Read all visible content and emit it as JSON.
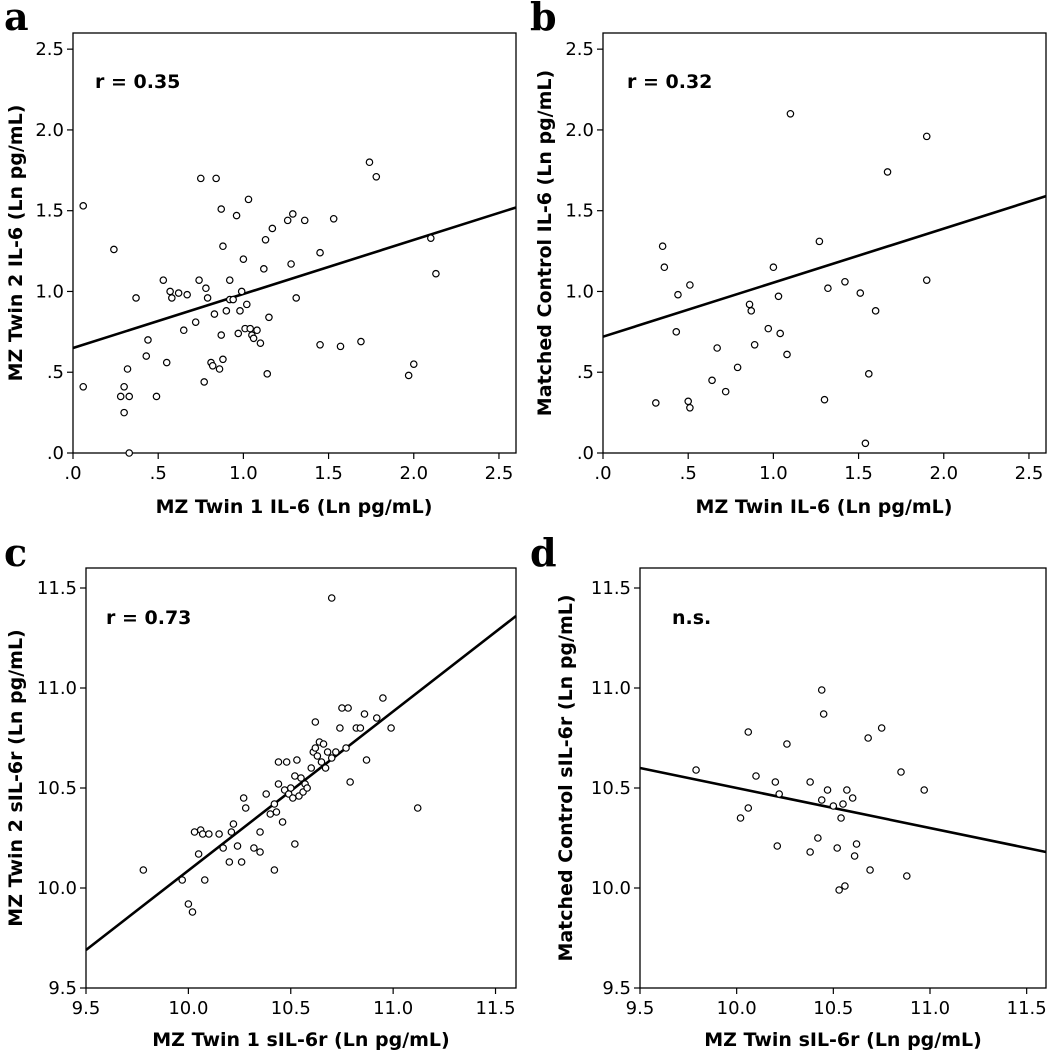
{
  "chart_data": [
    {
      "panel": "a",
      "type": "scatter",
      "annotation": "r = 0.35",
      "xlabel": "MZ Twin 1 IL-6 (Ln pg/mL)",
      "ylabel": "MZ Twin 2 IL-6 (Ln pg/mL)",
      "xlim": [
        0,
        2.6
      ],
      "ylim": [
        0,
        2.6
      ],
      "xticks": [
        0,
        0.5,
        1,
        1.5,
        2,
        2.5
      ],
      "yticks": [
        0,
        0.5,
        1,
        1.5,
        2,
        2.5
      ],
      "xtick_labels": [
        ".0",
        ".5",
        "1.0",
        "1.5",
        "2.0",
        "2.5"
      ],
      "ytick_labels": [
        ".0",
        ".5",
        "1.0",
        "1.5",
        "2.0",
        "2.5"
      ],
      "fit_line": [
        [
          0,
          0.65
        ],
        [
          2.6,
          1.52
        ]
      ],
      "points": [
        [
          0.06,
          1.53
        ],
        [
          0.06,
          0.41
        ],
        [
          0.24,
          1.26
        ],
        [
          0.28,
          0.35
        ],
        [
          0.3,
          0.41
        ],
        [
          0.3,
          0.25
        ],
        [
          0.32,
          0.52
        ],
        [
          0.33,
          0.35
        ],
        [
          0.33,
          0.0
        ],
        [
          0.37,
          0.96
        ],
        [
          0.43,
          0.6
        ],
        [
          0.44,
          0.7
        ],
        [
          0.49,
          0.35
        ],
        [
          0.53,
          1.07
        ],
        [
          0.55,
          0.56
        ],
        [
          0.57,
          1.0
        ],
        [
          0.58,
          0.96
        ],
        [
          0.62,
          0.99
        ],
        [
          0.65,
          0.76
        ],
        [
          0.67,
          0.98
        ],
        [
          0.72,
          0.81
        ],
        [
          0.74,
          1.07
        ],
        [
          0.75,
          1.7
        ],
        [
          0.77,
          0.44
        ],
        [
          0.78,
          1.02
        ],
        [
          0.79,
          0.96
        ],
        [
          0.81,
          0.56
        ],
        [
          0.82,
          0.54
        ],
        [
          0.83,
          0.86
        ],
        [
          0.84,
          1.7
        ],
        [
          0.86,
          0.52
        ],
        [
          0.87,
          1.51
        ],
        [
          0.87,
          0.73
        ],
        [
          0.88,
          0.58
        ],
        [
          0.88,
          1.28
        ],
        [
          0.9,
          0.88
        ],
        [
          0.92,
          1.07
        ],
        [
          0.92,
          0.95
        ],
        [
          0.94,
          0.95
        ],
        [
          0.96,
          1.47
        ],
        [
          0.97,
          0.74
        ],
        [
          0.98,
          0.88
        ],
        [
          0.99,
          1.0
        ],
        [
          1.0,
          1.2
        ],
        [
          1.01,
          0.77
        ],
        [
          1.02,
          0.92
        ],
        [
          1.03,
          1.57
        ],
        [
          1.04,
          0.77
        ],
        [
          1.05,
          0.73
        ],
        [
          1.06,
          0.71
        ],
        [
          1.08,
          0.76
        ],
        [
          1.1,
          0.68
        ],
        [
          1.12,
          1.14
        ],
        [
          1.13,
          1.32
        ],
        [
          1.14,
          0.49
        ],
        [
          1.15,
          0.84
        ],
        [
          1.17,
          1.39
        ],
        [
          1.26,
          1.44
        ],
        [
          1.28,
          1.17
        ],
        [
          1.29,
          1.48
        ],
        [
          1.31,
          0.96
        ],
        [
          1.36,
          1.44
        ],
        [
          1.45,
          1.24
        ],
        [
          1.45,
          0.67
        ],
        [
          1.53,
          1.45
        ],
        [
          1.57,
          0.66
        ],
        [
          1.69,
          0.69
        ],
        [
          1.74,
          1.8
        ],
        [
          1.78,
          1.71
        ],
        [
          1.97,
          0.48
        ],
        [
          2.0,
          0.55
        ],
        [
          2.1,
          1.33
        ],
        [
          2.13,
          1.11
        ]
      ]
    },
    {
      "panel": "b",
      "type": "scatter",
      "annotation": "r = 0.32",
      "xlabel": "MZ Twin IL-6 (Ln pg/mL)",
      "ylabel": "Matched Control IL-6 (Ln pg/mL)",
      "xlim": [
        0,
        2.6
      ],
      "ylim": [
        0,
        2.6
      ],
      "xticks": [
        0,
        0.5,
        1,
        1.5,
        2,
        2.5
      ],
      "yticks": [
        0,
        0.5,
        1,
        1.5,
        2,
        2.5
      ],
      "xtick_labels": [
        ".0",
        ".5",
        "1.0",
        "1.5",
        "2.0",
        "2.5"
      ],
      "ytick_labels": [
        ".0",
        ".5",
        "1.0",
        "1.5",
        "2.0",
        "2.5"
      ],
      "fit_line": [
        [
          0,
          0.72
        ],
        [
          2.6,
          1.59
        ]
      ],
      "points": [
        [
          0.31,
          0.31
        ],
        [
          0.35,
          1.28
        ],
        [
          0.36,
          1.15
        ],
        [
          0.43,
          0.75
        ],
        [
          0.44,
          0.98
        ],
        [
          0.5,
          0.32
        ],
        [
          0.51,
          0.28
        ],
        [
          0.51,
          1.04
        ],
        [
          0.64,
          0.45
        ],
        [
          0.67,
          0.65
        ],
        [
          0.72,
          0.38
        ],
        [
          0.79,
          0.53
        ],
        [
          0.86,
          0.92
        ],
        [
          0.87,
          0.88
        ],
        [
          0.89,
          0.67
        ],
        [
          0.97,
          0.77
        ],
        [
          1.0,
          1.15
        ],
        [
          1.03,
          0.97
        ],
        [
          1.04,
          0.74
        ],
        [
          1.08,
          0.61
        ],
        [
          1.1,
          2.1
        ],
        [
          1.27,
          1.31
        ],
        [
          1.3,
          0.33
        ],
        [
          1.32,
          1.02
        ],
        [
          1.42,
          1.06
        ],
        [
          1.51,
          0.99
        ],
        [
          1.54,
          0.06
        ],
        [
          1.56,
          0.49
        ],
        [
          1.6,
          0.88
        ],
        [
          1.67,
          1.74
        ],
        [
          1.9,
          1.96
        ],
        [
          1.9,
          1.07
        ]
      ]
    },
    {
      "panel": "c",
      "type": "scatter",
      "annotation": "r = 0.73",
      "xlabel": "MZ Twin 1 sIL-6r (Ln pg/mL)",
      "ylabel": "MZ Twin 2 sIL-6r (Ln pg/mL)",
      "xlim": [
        9.5,
        11.6
      ],
      "ylim": [
        9.5,
        11.6
      ],
      "xticks": [
        9.5,
        10,
        10.5,
        11,
        11.5
      ],
      "yticks": [
        9.5,
        10,
        10.5,
        11,
        11.5
      ],
      "xtick_labels": [
        "9.5",
        "10.0",
        "10.5",
        "11.0",
        "11.5"
      ],
      "ytick_labels": [
        "9.5",
        "10.0",
        "10.5",
        "11.0",
        "11.5"
      ],
      "fit_line": [
        [
          9.5,
          9.69
        ],
        [
          11.6,
          11.36
        ]
      ],
      "points": [
        [
          9.78,
          10.09
        ],
        [
          9.97,
          10.04
        ],
        [
          10.0,
          9.92
        ],
        [
          10.02,
          9.88
        ],
        [
          10.03,
          10.28
        ],
        [
          10.05,
          10.17
        ],
        [
          10.06,
          10.29
        ],
        [
          10.07,
          10.27
        ],
        [
          10.08,
          10.04
        ],
        [
          10.1,
          10.27
        ],
        [
          10.15,
          10.27
        ],
        [
          10.17,
          10.2
        ],
        [
          10.2,
          10.13
        ],
        [
          10.21,
          10.28
        ],
        [
          10.22,
          10.32
        ],
        [
          10.24,
          10.21
        ],
        [
          10.26,
          10.13
        ],
        [
          10.27,
          10.45
        ],
        [
          10.28,
          10.4
        ],
        [
          10.32,
          10.2
        ],
        [
          10.35,
          10.18
        ],
        [
          10.35,
          10.28
        ],
        [
          10.38,
          10.47
        ],
        [
          10.4,
          10.37
        ],
        [
          10.42,
          10.42
        ],
        [
          10.42,
          10.09
        ],
        [
          10.43,
          10.38
        ],
        [
          10.44,
          10.52
        ],
        [
          10.44,
          10.63
        ],
        [
          10.46,
          10.33
        ],
        [
          10.47,
          10.49
        ],
        [
          10.48,
          10.63
        ],
        [
          10.49,
          10.47
        ],
        [
          10.5,
          10.5
        ],
        [
          10.51,
          10.45
        ],
        [
          10.52,
          10.22
        ],
        [
          10.52,
          10.56
        ],
        [
          10.53,
          10.64
        ],
        [
          10.54,
          10.46
        ],
        [
          10.55,
          10.55
        ],
        [
          10.56,
          10.48
        ],
        [
          10.57,
          10.52
        ],
        [
          10.58,
          10.5
        ],
        [
          10.6,
          10.6
        ],
        [
          10.61,
          10.68
        ],
        [
          10.62,
          10.7
        ],
        [
          10.62,
          10.83
        ],
        [
          10.63,
          10.66
        ],
        [
          10.64,
          10.73
        ],
        [
          10.65,
          10.63
        ],
        [
          10.66,
          10.72
        ],
        [
          10.67,
          10.6
        ],
        [
          10.68,
          10.68
        ],
        [
          10.7,
          11.45
        ],
        [
          10.7,
          10.65
        ],
        [
          10.72,
          10.68
        ],
        [
          10.74,
          10.8
        ],
        [
          10.75,
          10.9
        ],
        [
          10.77,
          10.7
        ],
        [
          10.78,
          10.9
        ],
        [
          10.79,
          10.53
        ],
        [
          10.82,
          10.8
        ],
        [
          10.84,
          10.8
        ],
        [
          10.86,
          10.87
        ],
        [
          10.87,
          10.64
        ],
        [
          10.92,
          10.85
        ],
        [
          10.95,
          10.95
        ],
        [
          10.99,
          10.8
        ],
        [
          11.12,
          10.4
        ]
      ]
    },
    {
      "panel": "d",
      "type": "scatter",
      "annotation": "n.s.",
      "xlabel": "MZ Twin sIL-6r (Ln pg/mL)",
      "ylabel": "Matched Control sIL-6r (Ln pg/mL)",
      "xlim": [
        9.5,
        11.6
      ],
      "ylim": [
        9.5,
        11.6
      ],
      "xticks": [
        9.5,
        10,
        10.5,
        11,
        11.5
      ],
      "yticks": [
        9.5,
        10,
        10.5,
        11,
        11.5
      ],
      "xtick_labels": [
        "9.5",
        "10.0",
        "10.5",
        "11.0",
        "11.5"
      ],
      "ytick_labels": [
        "9.5",
        "10.0",
        "10.5",
        "11.0",
        "11.5"
      ],
      "fit_line": [
        [
          9.5,
          10.6
        ],
        [
          11.6,
          10.18
        ]
      ],
      "points": [
        [
          9.79,
          10.59
        ],
        [
          10.02,
          10.35
        ],
        [
          10.06,
          10.4
        ],
        [
          10.06,
          10.78
        ],
        [
          10.1,
          10.56
        ],
        [
          10.2,
          10.53
        ],
        [
          10.21,
          10.21
        ],
        [
          10.22,
          10.47
        ],
        [
          10.26,
          10.72
        ],
        [
          10.38,
          10.53
        ],
        [
          10.38,
          10.18
        ],
        [
          10.42,
          10.25
        ],
        [
          10.44,
          10.99
        ],
        [
          10.44,
          10.44
        ],
        [
          10.45,
          10.87
        ],
        [
          10.47,
          10.49
        ],
        [
          10.5,
          10.41
        ],
        [
          10.52,
          10.2
        ],
        [
          10.53,
          9.99
        ],
        [
          10.54,
          10.35
        ],
        [
          10.55,
          10.42
        ],
        [
          10.56,
          10.01
        ],
        [
          10.57,
          10.49
        ],
        [
          10.6,
          10.45
        ],
        [
          10.61,
          10.16
        ],
        [
          10.62,
          10.22
        ],
        [
          10.68,
          10.75
        ],
        [
          10.69,
          10.09
        ],
        [
          10.75,
          10.8
        ],
        [
          10.85,
          10.58
        ],
        [
          10.88,
          10.06
        ],
        [
          10.97,
          10.49
        ]
      ]
    }
  ]
}
